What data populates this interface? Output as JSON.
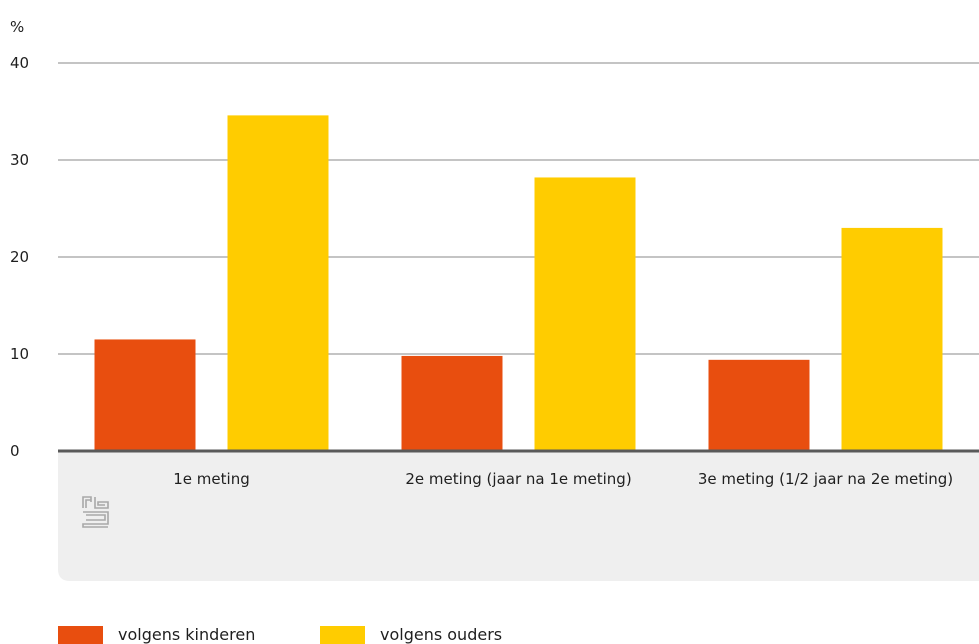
{
  "chart_data": {
    "type": "bar",
    "unit_label": "%",
    "categories": [
      "1e meting",
      "2e meting (jaar na 1e meting)",
      "3e meting (1/2 jaar na 2e meting)"
    ],
    "series": [
      {
        "name": "volgens kinderen",
        "color": "#e84e0f",
        "values": [
          11.5,
          9.8,
          9.4
        ]
      },
      {
        "name": "volgens ouders",
        "color": "#ffcc00",
        "values": [
          34.6,
          28.2,
          23.0
        ]
      }
    ],
    "ylim": [
      0,
      40
    ],
    "yticks": [
      0,
      10,
      20,
      30,
      40
    ],
    "grid": true,
    "legend_position": "bottom-left",
    "colors": {
      "grid": "#8a8a8a",
      "baseline": "#5a5a5a",
      "category_band": "#efefef",
      "logo": "#a8a8a8"
    },
    "logo_icon": "cbs-logo-icon"
  }
}
